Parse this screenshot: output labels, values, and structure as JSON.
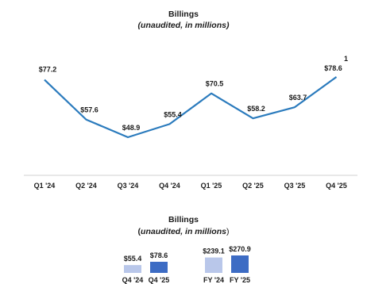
{
  "chart_data": [
    {
      "type": "line",
      "title": "Billings",
      "subtitle": "(unaudited, in millions)",
      "categories": [
        "Q1 '24",
        "Q2 '24",
        "Q3 '24",
        "Q4 '24",
        "Q1 '25",
        "Q2 '25",
        "Q3 '25",
        "Q4 '25"
      ],
      "values": [
        77.2,
        57.6,
        48.9,
        55.4,
        70.5,
        58.2,
        63.7,
        78.6
      ],
      "data_labels": [
        "$77.2",
        "$57.6",
        "$48.9",
        "$55.4",
        "$70.5",
        "$58.2",
        "$63.7",
        "$78.6"
      ],
      "annotation": "1",
      "line_color": "#2b7bbd",
      "grid": false
    },
    {
      "type": "bar",
      "title": "Billings",
      "subtitle_prefix": "(",
      "subtitle_italic": "unaudited, in millions",
      "subtitle_suffix": ")",
      "groups": [
        {
          "categories": [
            "Q4 '24",
            "Q4 '25"
          ],
          "values": [
            55.4,
            78.6
          ],
          "data_labels": [
            "$55.4",
            "$78.6"
          ]
        },
        {
          "categories": [
            "FY '24",
            "FY '25"
          ],
          "values": [
            239.1,
            270.9
          ],
          "data_labels": [
            "$239.1",
            "$270.9"
          ]
        }
      ],
      "colors": {
        "prior": "#b9c7ea",
        "current": "#3d6cc4"
      }
    }
  ]
}
